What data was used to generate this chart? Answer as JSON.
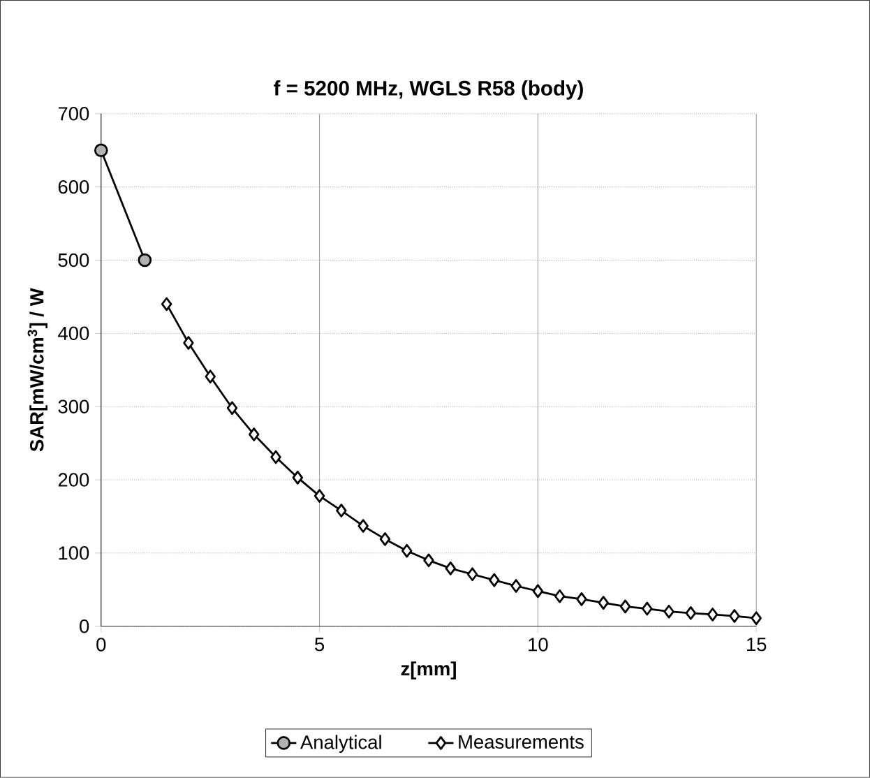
{
  "chart_data": {
    "type": "line",
    "title": "f = 5200 MHz, WGLS R58 (body)",
    "xlabel": "z[mm]",
    "ylabel": "SAR[mW/cm$^{3}$] / W",
    "xlim": [
      0,
      15
    ],
    "xticks": [
      0,
      5,
      10,
      15
    ],
    "ylim": [
      0,
      700
    ],
    "yticks": [
      0,
      100,
      200,
      300,
      400,
      500,
      600,
      700
    ],
    "grid": true,
    "legend": "bottom",
    "series": [
      {
        "name": "Analytical",
        "color": "#000000",
        "marker": "circle",
        "x": [
          0,
          1
        ],
        "values": [
          650,
          500
        ]
      },
      {
        "name": "Measurements",
        "color": "#000000",
        "marker": "diamond",
        "x": [
          1.5,
          2,
          2.5,
          3,
          3.5,
          4,
          4.5,
          5,
          5.5,
          6,
          6.5,
          7,
          7.5,
          8,
          8.5,
          9,
          9.5,
          10,
          10.5,
          11,
          11.5,
          12,
          12.5,
          13,
          13.5,
          14,
          14.5,
          15
        ],
        "values": [
          440,
          387,
          341,
          298,
          262,
          231,
          203,
          178,
          158,
          137,
          119,
          103,
          90,
          79,
          71,
          63,
          55,
          48,
          41,
          37,
          32,
          27,
          24,
          20,
          18,
          16,
          14,
          11
        ]
      }
    ]
  }
}
